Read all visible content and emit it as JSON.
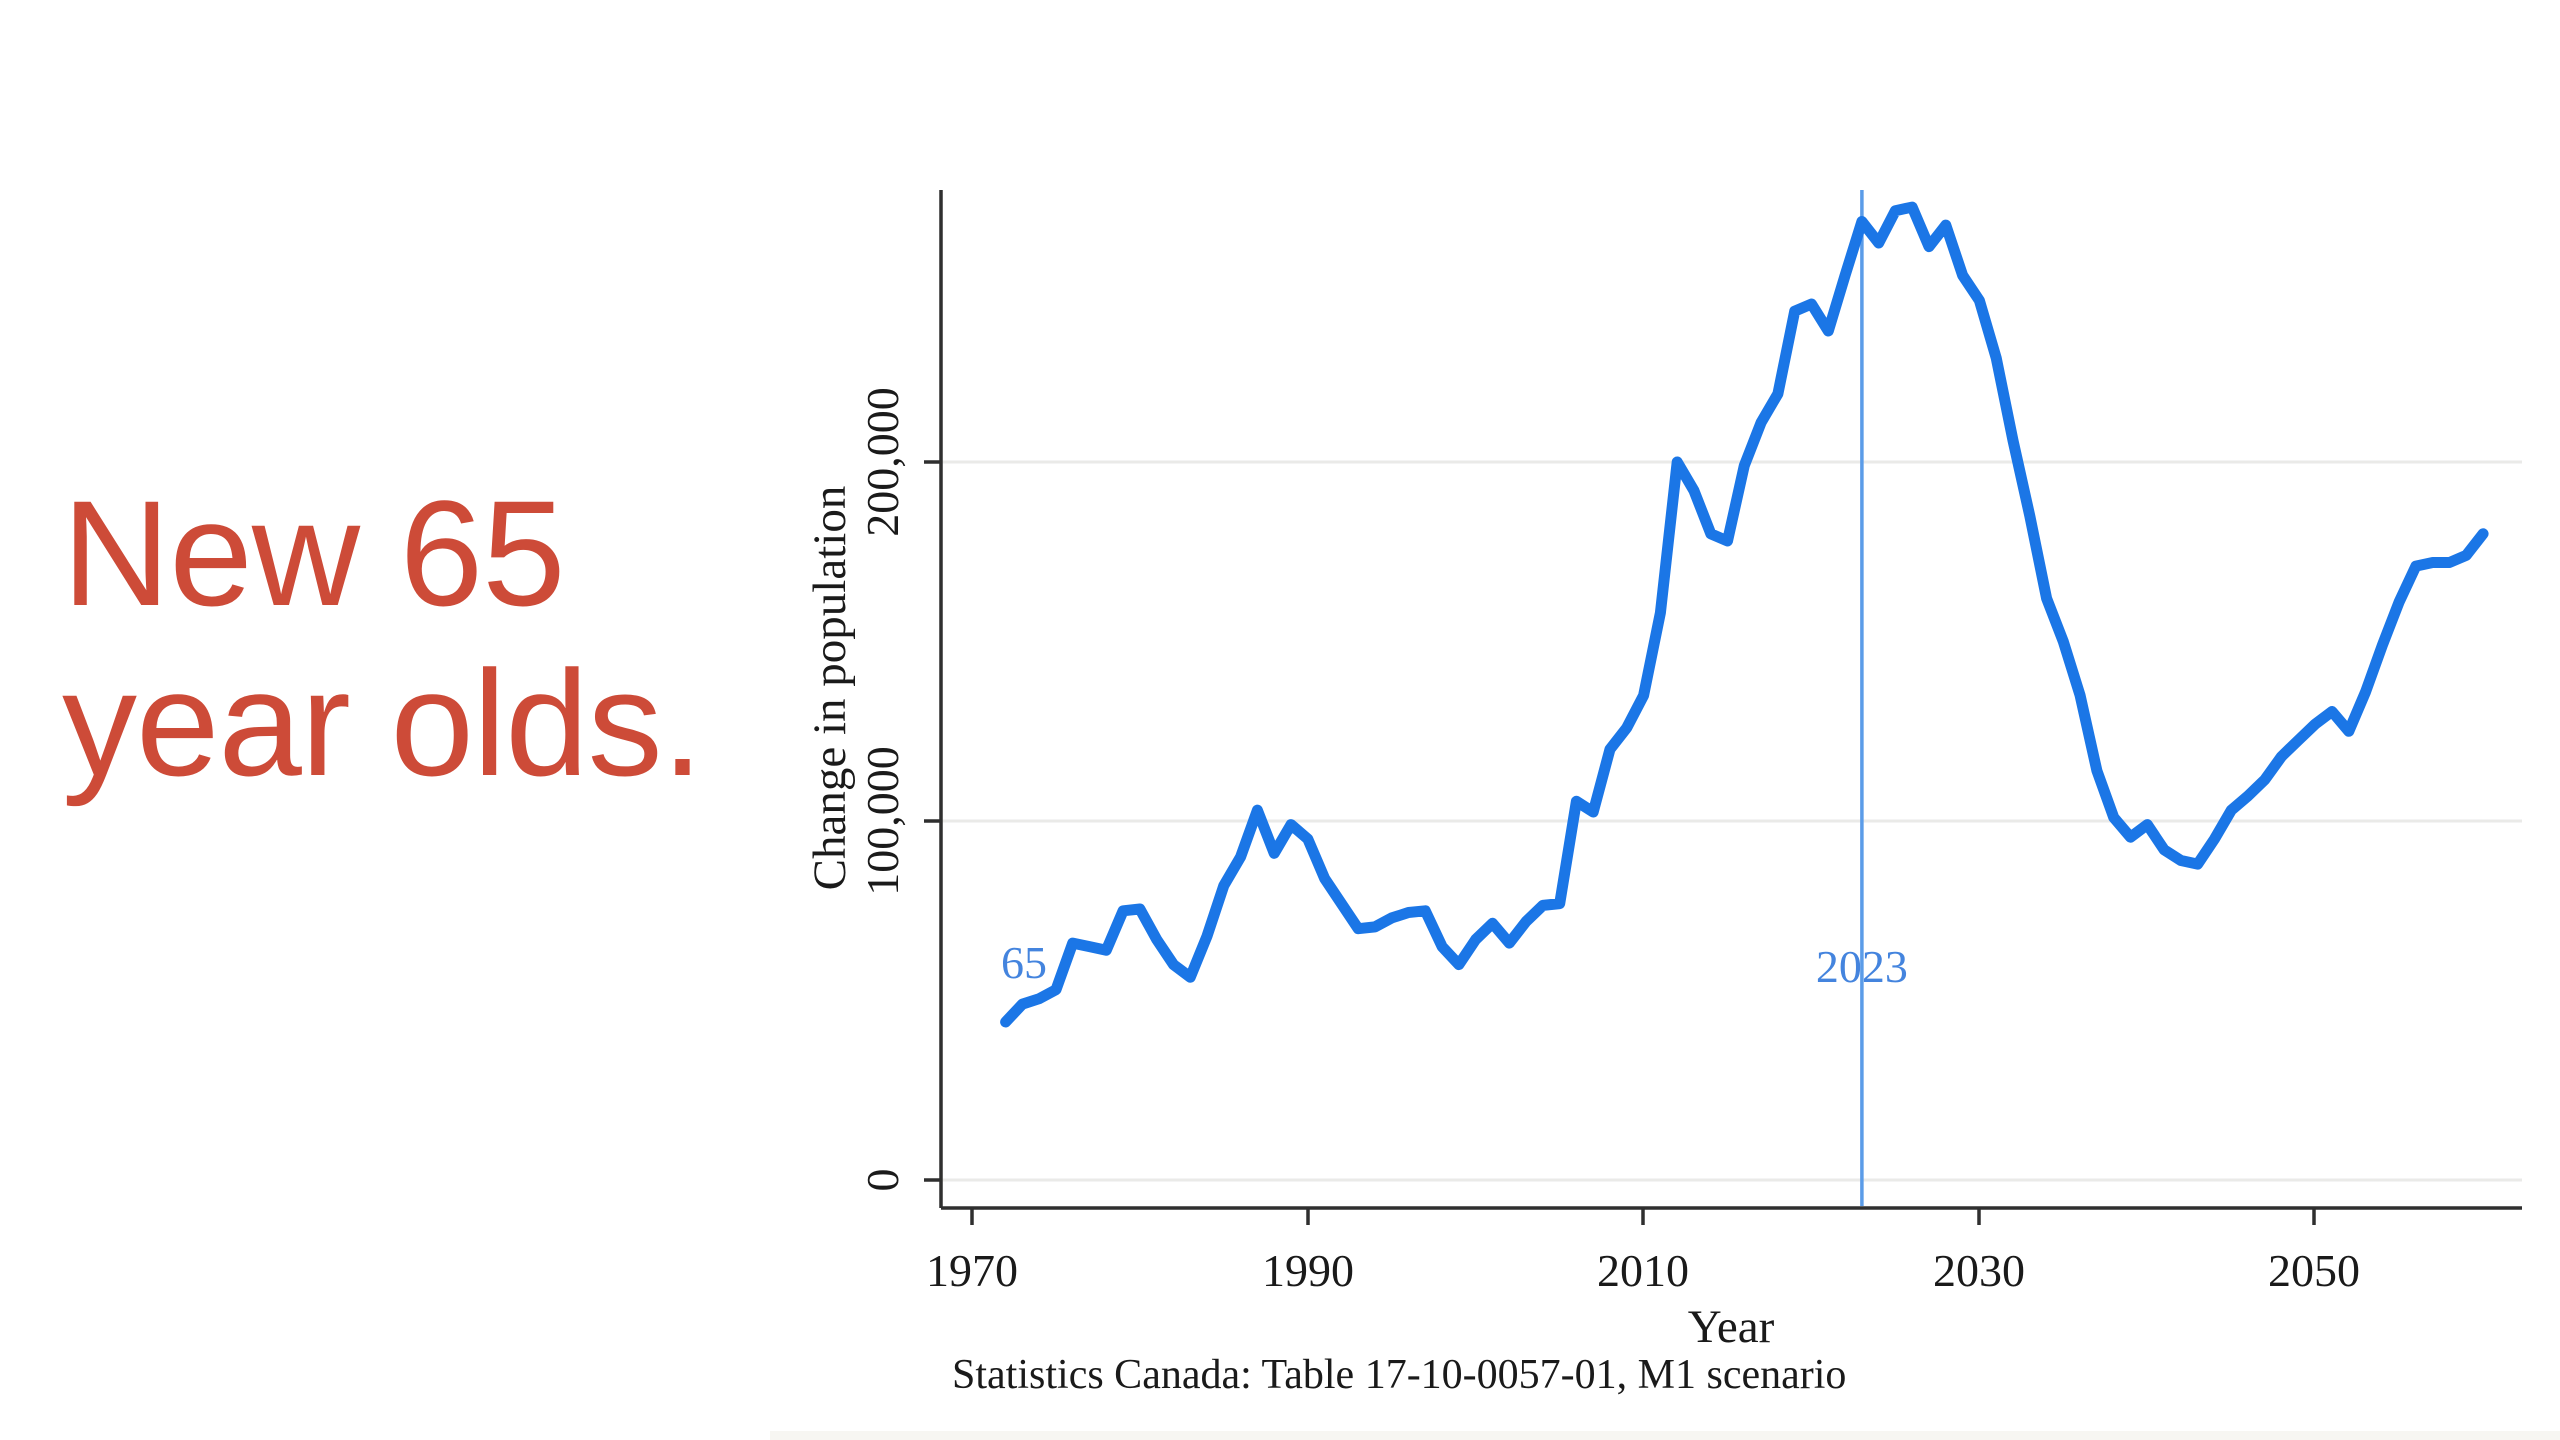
{
  "headline": {
    "text": "New 65 year olds.",
    "lines": [
      "New 65",
      "year olds."
    ],
    "color": "#cd4b38"
  },
  "chart_data": {
    "type": "line",
    "title": "",
    "xlabel": "Year",
    "ylabel": "Change in population",
    "x_ticks": [
      "1970",
      "1990",
      "2010",
      "2030",
      "2050"
    ],
    "y_ticks": [
      "0",
      "100,000",
      "200,000"
    ],
    "xlim": [
      1968,
      2062
    ],
    "ylim": [
      -8000,
      275000
    ],
    "grid": "horizontal gridlines at y ticks, light gray",
    "legend_position": "none",
    "vline": {
      "x": 2023,
      "label": "2023",
      "color": "#5b9ce8"
    },
    "annotations": [
      {
        "text": "65",
        "meaning": "series start label (age 65)",
        "color": "#4484de"
      },
      {
        "text": "2023",
        "meaning": "reference year on vertical rule",
        "color": "#4484de"
      }
    ],
    "series": [
      {
        "name": "New 65 year olds (change in population), M1 scenario",
        "color": "#1b76e6",
        "points": [
          [
            1972,
            44000
          ],
          [
            1973,
            49000
          ],
          [
            1974,
            50500
          ],
          [
            1975,
            53000
          ],
          [
            1976,
            66000
          ],
          [
            1977,
            65000
          ],
          [
            1978,
            64000
          ],
          [
            1979,
            75000
          ],
          [
            1980,
            75500
          ],
          [
            1981,
            67000
          ],
          [
            1982,
            60000
          ],
          [
            1983,
            56500
          ],
          [
            1984,
            68000
          ],
          [
            1985,
            82000
          ],
          [
            1986,
            90000
          ],
          [
            1987,
            103000
          ],
          [
            1988,
            91000
          ],
          [
            1989,
            99000
          ],
          [
            1990,
            95000
          ],
          [
            1991,
            84000
          ],
          [
            1992,
            77000
          ],
          [
            1993,
            70000
          ],
          [
            1994,
            70500
          ],
          [
            1995,
            73000
          ],
          [
            1996,
            74500
          ],
          [
            1997,
            75000
          ],
          [
            1998,
            65000
          ],
          [
            1999,
            60000
          ],
          [
            2000,
            67000
          ],
          [
            2001,
            71500
          ],
          [
            2002,
            66000
          ],
          [
            2003,
            72000
          ],
          [
            2004,
            76500
          ],
          [
            2005,
            77000
          ],
          [
            2006,
            105500
          ],
          [
            2007,
            102500
          ],
          [
            2008,
            120000
          ],
          [
            2009,
            126000
          ],
          [
            2010,
            135000
          ],
          [
            2011,
            158000
          ],
          [
            2012,
            200000
          ],
          [
            2013,
            192000
          ],
          [
            2014,
            180000
          ],
          [
            2015,
            178000
          ],
          [
            2016,
            199000
          ],
          [
            2017,
            211000
          ],
          [
            2018,
            219000
          ],
          [
            2019,
            242000
          ],
          [
            2020,
            244000
          ],
          [
            2021,
            236500
          ],
          [
            2022,
            252000
          ],
          [
            2023,
            267000
          ],
          [
            2024,
            261000
          ],
          [
            2025,
            270000
          ],
          [
            2026,
            271000
          ],
          [
            2027,
            260000
          ],
          [
            2028,
            266000
          ],
          [
            2029,
            252000
          ],
          [
            2030,
            245000
          ],
          [
            2031,
            229000
          ],
          [
            2032,
            206000
          ],
          [
            2033,
            185000
          ],
          [
            2034,
            162000
          ],
          [
            2035,
            150000
          ],
          [
            2036,
            135000
          ],
          [
            2037,
            114000
          ],
          [
            2038,
            101000
          ],
          [
            2039,
            95500
          ],
          [
            2040,
            99000
          ],
          [
            2041,
            92000
          ],
          [
            2042,
            89000
          ],
          [
            2043,
            88000
          ],
          [
            2044,
            95000
          ],
          [
            2045,
            103000
          ],
          [
            2046,
            107000
          ],
          [
            2047,
            111500
          ],
          [
            2048,
            118000
          ],
          [
            2049,
            122500
          ],
          [
            2050,
            127000
          ],
          [
            2051,
            130500
          ],
          [
            2052,
            125000
          ],
          [
            2053,
            136000
          ],
          [
            2054,
            149000
          ],
          [
            2055,
            161000
          ],
          [
            2056,
            171000
          ],
          [
            2057,
            172000
          ],
          [
            2058,
            172000
          ],
          [
            2059,
            174000
          ],
          [
            2060,
            180000
          ]
        ]
      }
    ],
    "source": "Statistics Canada: Table 17-10-0057-01, M1 scenario"
  }
}
